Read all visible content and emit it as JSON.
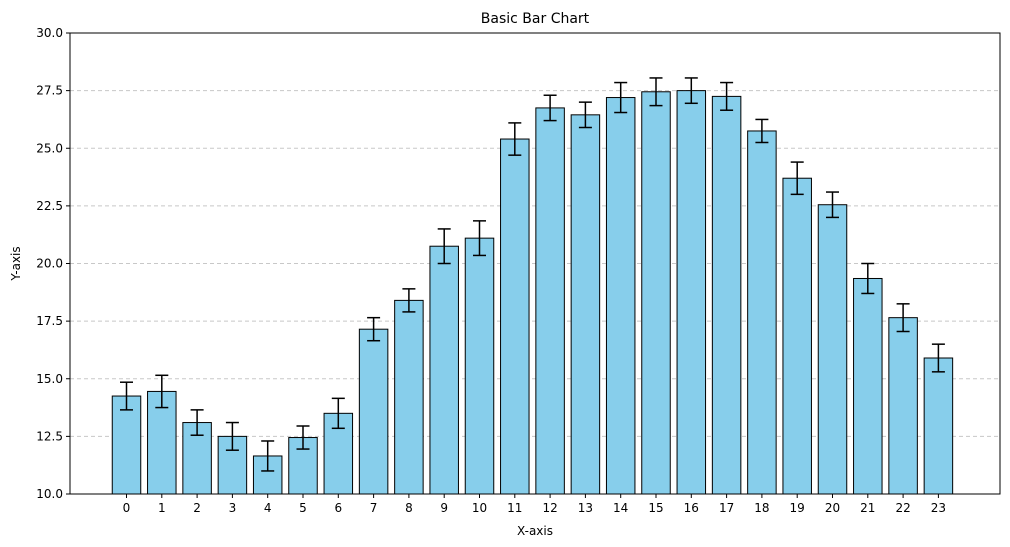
{
  "chart_data": {
    "type": "bar",
    "title": "Basic Bar Chart",
    "xlabel": "X-axis",
    "ylabel": "Y-axis",
    "categories": [
      "0",
      "1",
      "2",
      "3",
      "4",
      "5",
      "6",
      "7",
      "8",
      "9",
      "10",
      "11",
      "12",
      "13",
      "14",
      "15",
      "16",
      "17",
      "18",
      "19",
      "20",
      "21",
      "22",
      "23"
    ],
    "values": [
      14.25,
      14.45,
      13.1,
      12.5,
      11.65,
      12.45,
      13.5,
      17.15,
      18.4,
      20.75,
      21.1,
      25.4,
      26.75,
      26.45,
      27.2,
      27.45,
      27.5,
      27.25,
      25.75,
      23.7,
      22.55,
      19.35,
      17.65,
      15.9
    ],
    "errors": [
      0.6,
      0.7,
      0.55,
      0.6,
      0.65,
      0.5,
      0.65,
      0.5,
      0.5,
      0.75,
      0.75,
      0.7,
      0.55,
      0.55,
      0.65,
      0.6,
      0.55,
      0.6,
      0.5,
      0.7,
      0.55,
      0.65,
      0.6,
      0.6
    ],
    "ylim": [
      10,
      30
    ],
    "yticks": [
      "10.0",
      "12.5",
      "15.0",
      "17.5",
      "20.0",
      "22.5",
      "25.0",
      "27.5",
      "30.0"
    ],
    "grid": "y-dashed",
    "bar_color": "#87ceeb",
    "edge_color": "#000000",
    "grid_color": "#c8c8c8"
  }
}
